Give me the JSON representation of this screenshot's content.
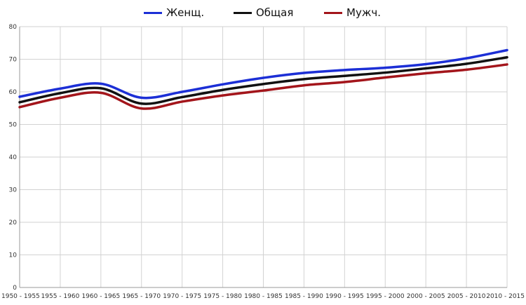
{
  "chart_data": {
    "type": "line",
    "categories": [
      "1950 - 1955",
      "1955 - 1960",
      "1960 - 1965",
      "1965 - 1970",
      "1970 - 1975",
      "1975 - 1980",
      "1980 - 1985",
      "1985 - 1990",
      "1990 - 1995",
      "1995 - 2000",
      "2000 - 2005",
      "2005 - 2010",
      "2010 - 2015"
    ],
    "series": [
      {
        "name": "Женщ.",
        "color": "#1c2fd6",
        "values": [
          58.5,
          61.0,
          62.5,
          58.2,
          60.0,
          62.3,
          64.3,
          65.8,
          66.7,
          67.4,
          68.5,
          70.3,
          72.8
        ]
      },
      {
        "name": "Общая",
        "color": "#111111",
        "values": [
          56.8,
          59.6,
          61.1,
          56.4,
          58.4,
          60.6,
          62.4,
          63.9,
          64.9,
          65.9,
          67.2,
          68.6,
          70.6
        ]
      },
      {
        "name": "Мужч.",
        "color": "#a3151b",
        "values": [
          55.3,
          58.2,
          59.7,
          54.9,
          57.0,
          58.9,
          60.4,
          62.0,
          63.0,
          64.4,
          65.7,
          66.8,
          68.4
        ]
      }
    ],
    "yticks": [
      "0",
      "10",
      "20",
      "30",
      "40",
      "50",
      "60",
      "70",
      "80"
    ],
    "ylim": [
      0,
      80
    ],
    "grid": true,
    "legend_position": "top-center"
  }
}
